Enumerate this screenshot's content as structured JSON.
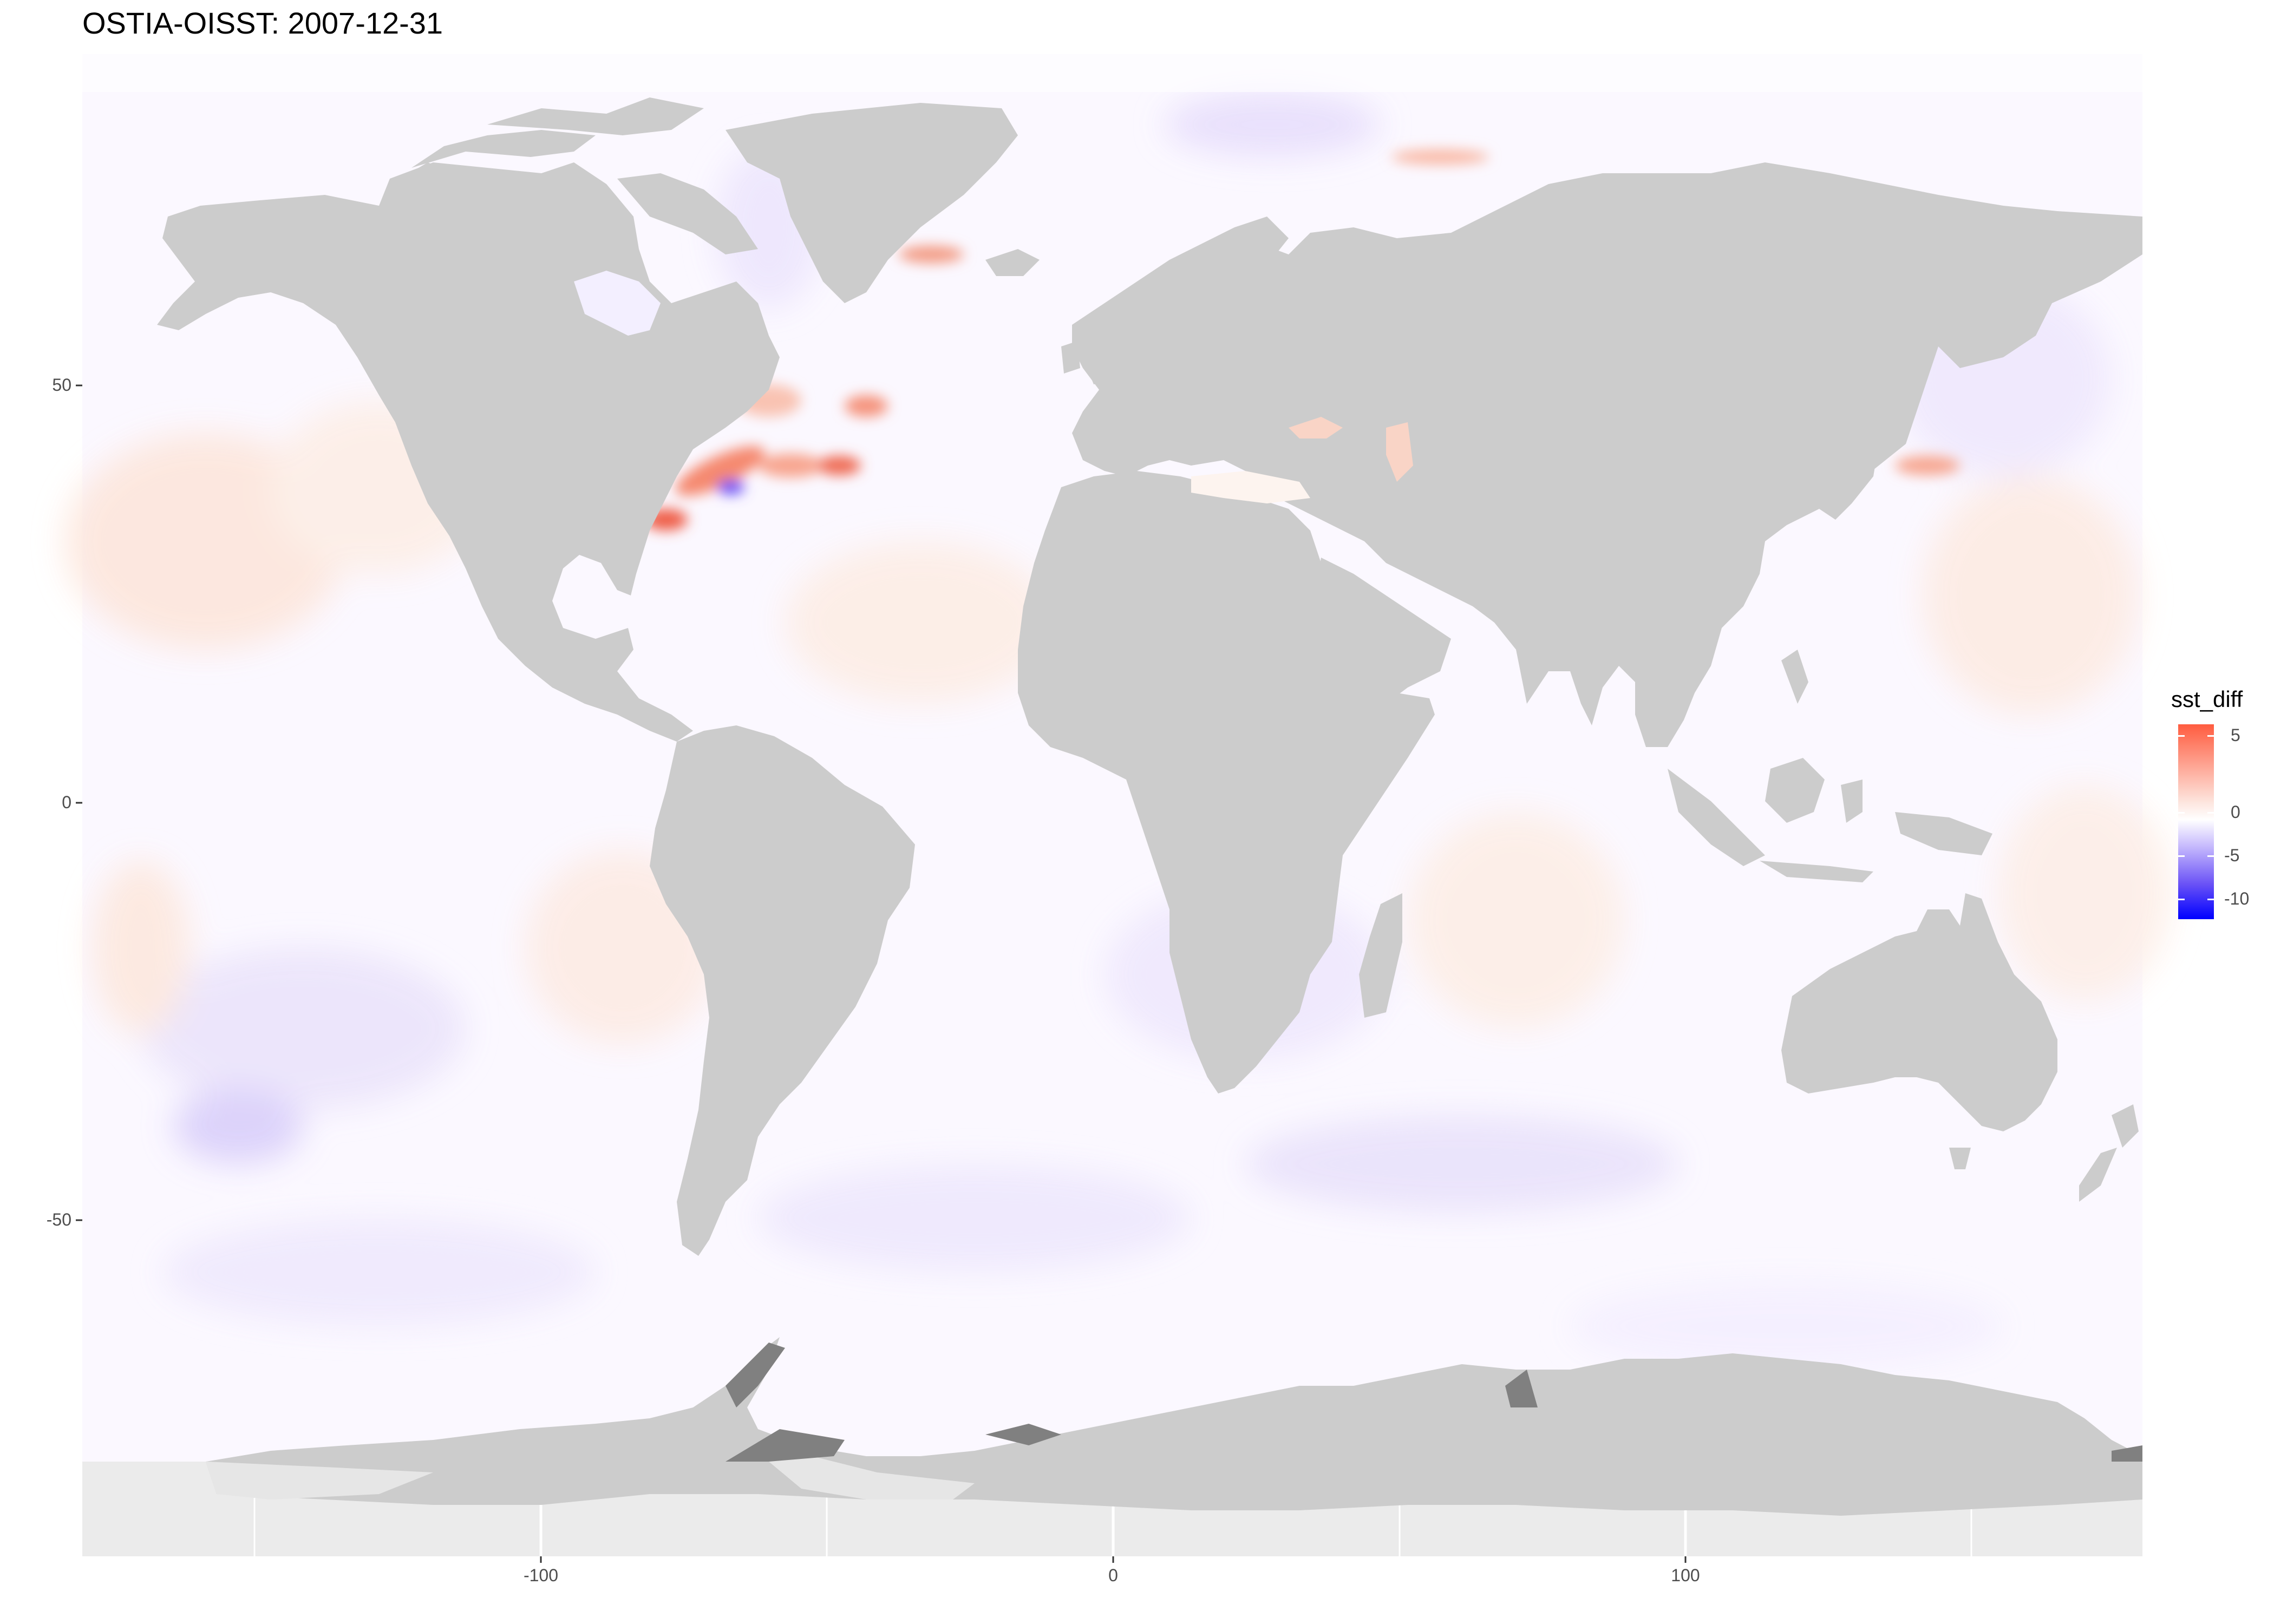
{
  "title": "OSTIA-OISST: 2007-12-31",
  "colors": {
    "land": "#cccccc",
    "ice_shelf": "#e6e6e6",
    "panel": "#ebebeb",
    "grid": "#ffffff",
    "warm": "#ff5c3f",
    "cool": "#0000ff"
  },
  "axes": {
    "x_ticks": [
      "-100",
      "0",
      "100"
    ],
    "y_ticks": [
      "50",
      "0",
      "-50"
    ]
  },
  "legend": {
    "title": "sst_diff",
    "labels": [
      "5",
      "0",
      "-5",
      "-10"
    ]
  }
}
